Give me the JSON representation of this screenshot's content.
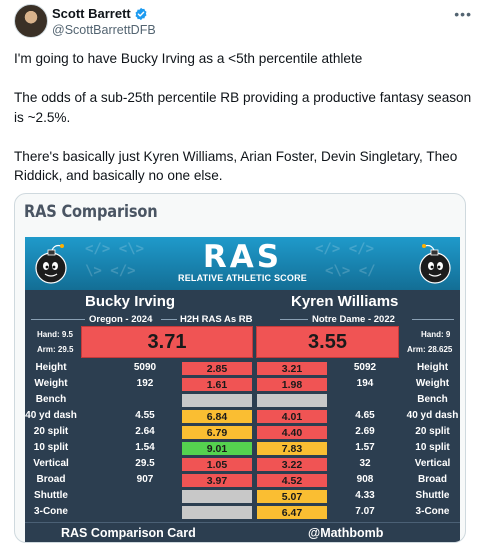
{
  "author": {
    "display_name": "Scott Barrett",
    "handle": "@ScottBarrettDFB",
    "verified_color": "#1d9bf0"
  },
  "more_icon": "more-options-icon",
  "tweet": {
    "paragraphs": [
      "I'm going to have Bucky Irving as a <5th percentile athlete",
      "The odds of a sub-25th percentile RB providing a productive fantasy season is ~2.5%.",
      "There's basically just Kyren Williams, Arian Foster, Devin Singletary, Theo Riddick, and basically no one else."
    ]
  },
  "card": {
    "title": "RAS Comparison",
    "logo": "RAS",
    "logo_sub": "RELATIVE ATHLETIC SCORE",
    "left_player": {
      "name": "Bucky Irving",
      "school": "Oregon - 2024",
      "hand": "Hand: 9.5",
      "arm": "Arm: 29.5",
      "ras": "3.71"
    },
    "center_label": "H2H RAS As RB",
    "right_player": {
      "name": "Kyren Williams",
      "school": "Notre Dame - 2022",
      "hand": "Hand: 9",
      "arm": "Arm: 28.625",
      "ras": "3.55"
    },
    "colors": {
      "red": "#f05454",
      "orange": "#fabe32",
      "green": "#55d24f",
      "gray": "#c8c8c8",
      "navy": "#2c3e50",
      "blue": "#1f9acb"
    },
    "metrics": [
      {
        "label": "Height",
        "left_raw": "5090",
        "left_score": "2.85",
        "left_color": "red",
        "right_score": "3.21",
        "right_color": "red",
        "right_raw": "5092"
      },
      {
        "label": "Weight",
        "left_raw": "192",
        "left_score": "1.61",
        "left_color": "red",
        "right_score": "1.98",
        "right_color": "red",
        "right_raw": "194"
      },
      {
        "label": "Bench",
        "left_raw": "",
        "left_score": "",
        "left_color": "gray",
        "right_score": "",
        "right_color": "gray",
        "right_raw": ""
      },
      {
        "label": "40 yd dash",
        "left_raw": "4.55",
        "left_score": "6.84",
        "left_color": "orange",
        "right_score": "4.01",
        "right_color": "red",
        "right_raw": "4.65"
      },
      {
        "label": "20 split",
        "left_raw": "2.64",
        "left_score": "6.79",
        "left_color": "orange",
        "right_score": "4.40",
        "right_color": "red",
        "right_raw": "2.69"
      },
      {
        "label": "10 split",
        "left_raw": "1.54",
        "left_score": "9.01",
        "left_color": "green",
        "right_score": "7.83",
        "right_color": "orange",
        "right_raw": "1.57"
      },
      {
        "label": "Vertical",
        "left_raw": "29.5",
        "left_score": "1.05",
        "left_color": "red",
        "right_score": "3.22",
        "right_color": "red",
        "right_raw": "32"
      },
      {
        "label": "Broad",
        "left_raw": "907",
        "left_score": "3.97",
        "left_color": "red",
        "right_score": "4.52",
        "right_color": "red",
        "right_raw": "908"
      },
      {
        "label": "Shuttle",
        "left_raw": "",
        "left_score": "",
        "left_color": "gray",
        "right_score": "5.07",
        "right_color": "orange",
        "right_raw": "4.33"
      },
      {
        "label": "3-Cone",
        "left_raw": "",
        "left_score": "",
        "left_color": "gray",
        "right_score": "6.47",
        "right_color": "orange",
        "right_raw": "7.07"
      }
    ],
    "footer_left": "RAS Comparison Card",
    "footer_right": "@Mathbomb"
  }
}
